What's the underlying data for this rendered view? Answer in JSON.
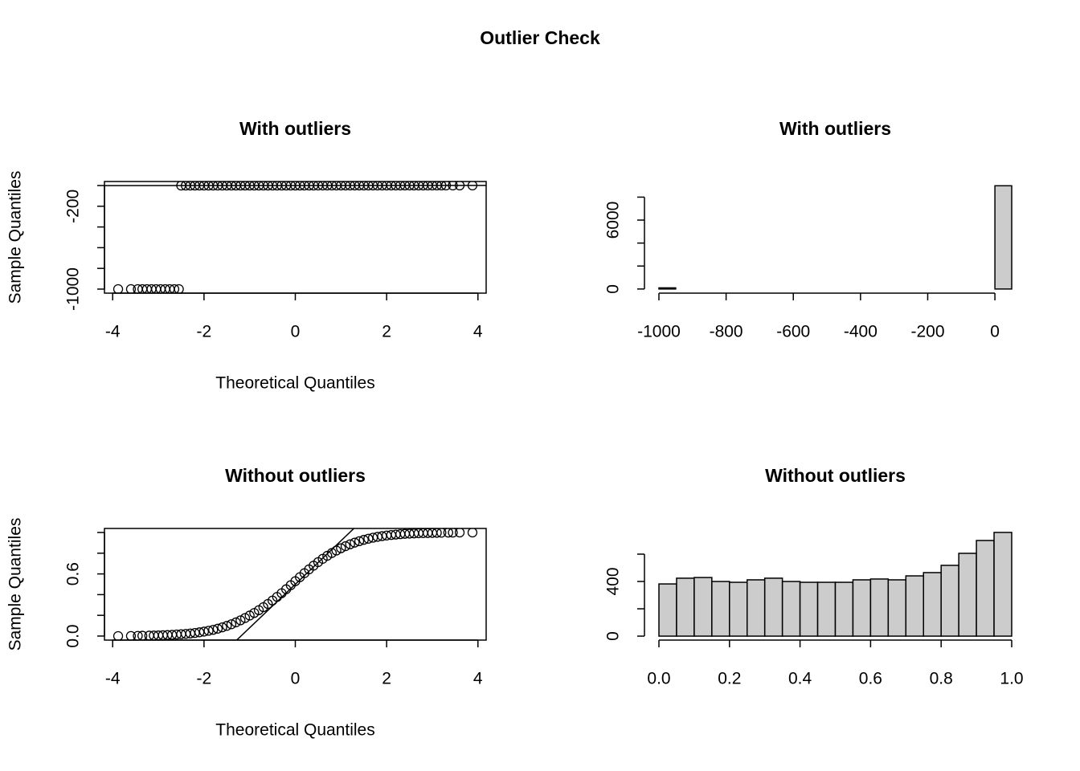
{
  "title": "Outlier Check",
  "chart_data": [
    {
      "type": "qq",
      "title": "With outliers",
      "x_label": "Theoretical Quantiles",
      "y_label": "Sample Quantiles",
      "box": true,
      "xlim": [
        -4.18,
        4.18
      ],
      "ylim": [
        -1039,
        39
      ],
      "xticks": [
        -4,
        -2,
        0,
        2,
        4
      ],
      "yticks": [
        -1000,
        -200
      ],
      "ytick_marks": [
        -1000,
        -800,
        -600,
        -400,
        -200,
        0
      ],
      "qqline": {
        "intercept": 0.42,
        "slope": 0.17
      },
      "x": [
        -3.88,
        -3.6,
        -3.45,
        -3.35,
        -3.25,
        -3.15,
        -3.05,
        -2.95,
        -2.85,
        -2.75,
        -2.65,
        -2.55,
        -2.5,
        -2.4,
        -2.3,
        -2.2,
        -2.1,
        -2.0,
        -1.9,
        -1.8,
        -1.7,
        -1.6,
        -1.5,
        -1.4,
        -1.3,
        -1.2,
        -1.1,
        -1.0,
        -0.9,
        -0.8,
        -0.7,
        -0.6,
        -0.5,
        -0.4,
        -0.3,
        -0.2,
        -0.1,
        0.0,
        0.1,
        0.2,
        0.3,
        0.4,
        0.5,
        0.6,
        0.7,
        0.8,
        0.9,
        1.0,
        1.1,
        1.2,
        1.3,
        1.4,
        1.5,
        1.6,
        1.7,
        1.8,
        1.9,
        2.0,
        2.1,
        2.2,
        2.3,
        2.4,
        2.5,
        2.6,
        2.7,
        2.8,
        2.9,
        3.0,
        3.1,
        3.2,
        3.3,
        3.45,
        3.6,
        3.88
      ],
      "y": [
        -1000,
        -1000,
        -1000,
        -1000,
        -1000,
        -1000,
        -1000,
        -1000,
        -1000,
        -1000,
        -1000,
        -1000,
        0.0,
        0.02,
        0.03,
        0.05,
        0.07,
        0.08,
        0.1,
        0.12,
        0.14,
        0.15,
        0.17,
        0.19,
        0.2,
        0.22,
        0.24,
        0.25,
        0.27,
        0.29,
        0.31,
        0.32,
        0.34,
        0.36,
        0.37,
        0.39,
        0.41,
        0.42,
        0.44,
        0.46,
        0.47,
        0.49,
        0.51,
        0.53,
        0.54,
        0.56,
        0.58,
        0.59,
        0.61,
        0.63,
        0.64,
        0.66,
        0.68,
        0.69,
        0.71,
        0.73,
        0.75,
        0.76,
        0.78,
        0.8,
        0.81,
        0.83,
        0.85,
        0.86,
        0.88,
        0.9,
        0.92,
        0.93,
        0.95,
        0.97,
        0.98,
        0.99,
        0.995,
        1.0
      ]
    },
    {
      "type": "histogram",
      "title": "With outliers",
      "color": "#cccccc",
      "xlim": [
        -1043,
        93
      ],
      "ylim": [
        -360,
        9360
      ],
      "xticks": [
        -1000,
        -800,
        -600,
        -400,
        -200,
        0
      ],
      "yticks": [
        0,
        6000
      ],
      "ytick_marks": [
        0,
        2000,
        4000,
        6000,
        8000
      ],
      "bins": [
        -1000,
        -950,
        -900,
        -850,
        -800,
        -750,
        -700,
        -650,
        -600,
        -550,
        -500,
        -450,
        -400,
        -350,
        -300,
        -250,
        -200,
        -150,
        -100,
        -50,
        0,
        50
      ],
      "values": [
        100,
        0,
        0,
        0,
        0,
        0,
        0,
        0,
        0,
        0,
        0,
        0,
        0,
        0,
        0,
        0,
        0,
        0,
        0,
        0,
        8990
      ]
    },
    {
      "type": "qq",
      "title": "Without outliers",
      "x_label": "Theoretical Quantiles",
      "y_label": "Sample Quantiles",
      "box": true,
      "xlim": [
        -4.18,
        4.18
      ],
      "ylim": [
        -0.039,
        1.039
      ],
      "xticks": [
        -4,
        -2,
        0,
        2,
        4
      ],
      "yticks": [
        {
          "value": 0,
          "label": "0.0"
        },
        0.6
      ],
      "ytick_marks": [
        0,
        0.2,
        0.4,
        0.6,
        0.8,
        1
      ],
      "qqline": {
        "intercept": 0.5,
        "slope": 0.42
      },
      "x": [
        -3.88,
        -3.6,
        -3.45,
        -3.35,
        -3.2,
        -3.1,
        -3.0,
        -2.9,
        -2.8,
        -2.7,
        -2.6,
        -2.5,
        -2.4,
        -2.3,
        -2.2,
        -2.1,
        -2.0,
        -1.9,
        -1.8,
        -1.7,
        -1.6,
        -1.5,
        -1.4,
        -1.3,
        -1.2,
        -1.1,
        -1.0,
        -0.9,
        -0.8,
        -0.7,
        -0.6,
        -0.5,
        -0.4,
        -0.3,
        -0.2,
        -0.1,
        0.0,
        0.1,
        0.2,
        0.3,
        0.4,
        0.5,
        0.6,
        0.7,
        0.8,
        0.9,
        1.0,
        1.1,
        1.2,
        1.3,
        1.4,
        1.5,
        1.6,
        1.7,
        1.8,
        1.9,
        2.0,
        2.1,
        2.2,
        2.3,
        2.4,
        2.5,
        2.6,
        2.7,
        2.8,
        2.9,
        3.0,
        3.1,
        3.2,
        3.35,
        3.45,
        3.6,
        3.88
      ],
      "y": [
        0.0,
        0.001,
        0.002,
        0.003,
        0.004,
        0.005,
        0.006,
        0.008,
        0.01,
        0.012,
        0.015,
        0.018,
        0.021,
        0.025,
        0.03,
        0.036,
        0.043,
        0.051,
        0.06,
        0.071,
        0.084,
        0.098,
        0.114,
        0.132,
        0.152,
        0.174,
        0.198,
        0.223,
        0.25,
        0.279,
        0.31,
        0.343,
        0.378,
        0.414,
        0.452,
        0.491,
        0.53,
        0.569,
        0.607,
        0.644,
        0.68,
        0.714,
        0.746,
        0.775,
        0.802,
        0.826,
        0.848,
        0.868,
        0.886,
        0.902,
        0.916,
        0.929,
        0.94,
        0.95,
        0.958,
        0.965,
        0.971,
        0.976,
        0.98,
        0.984,
        0.987,
        0.989,
        0.991,
        0.993,
        0.994,
        0.995,
        0.996,
        0.997,
        0.998,
        0.999,
        0.999,
        1.0,
        1.0
      ]
    },
    {
      "type": "histogram",
      "title": "Without outliers",
      "color": "#cccccc",
      "xlim": [
        -0.041,
        1.041
      ],
      "ylim": [
        -29,
        788
      ],
      "xticks": [
        {
          "value": 0,
          "label": "0.0"
        },
        0.2,
        0.4,
        0.6,
        0.8,
        {
          "value": 1,
          "label": "1.0"
        }
      ],
      "yticks": [
        0,
        400
      ],
      "ytick_marks": [
        0,
        200,
        400,
        600
      ],
      "bins": [
        0,
        0.05,
        0.1,
        0.15,
        0.2,
        0.25,
        0.3,
        0.35,
        0.4,
        0.45,
        0.5,
        0.55,
        0.6,
        0.65,
        0.7,
        0.75,
        0.8,
        0.85,
        0.9,
        0.95,
        1
      ],
      "values": [
        382,
        424,
        429,
        400,
        394,
        412,
        424,
        400,
        394,
        394,
        394,
        412,
        418,
        412,
        441,
        465,
        518,
        606,
        700,
        759
      ]
    }
  ]
}
